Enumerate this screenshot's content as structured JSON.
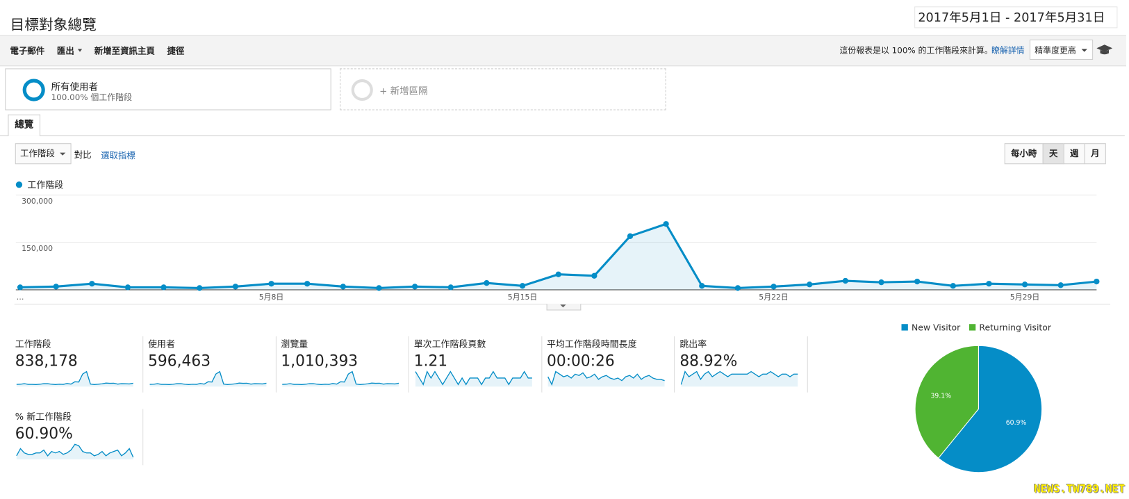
{
  "header": {
    "title": "目標對象總覽",
    "date_range": "2017年5月1日 - 2017年5月31日"
  },
  "toolbar": {
    "actions": [
      "電子郵件",
      "匯出",
      "新增至資訊主頁",
      "捷徑"
    ],
    "note": "這份報表是以 100% 的工作階段來計算。",
    "learn_more": "瞭解詳情",
    "precision": "精準度更高"
  },
  "segments": [
    {
      "name": "所有使用者",
      "detail": "100.00% 個工作階段"
    },
    {
      "name": "+ 新增區隔"
    }
  ],
  "tabs": [
    "總覽"
  ],
  "chart_controls": {
    "metric": "工作階段",
    "compare": "對比",
    "select_metric": "選取指標",
    "granularity": [
      "每小時",
      "天",
      "週",
      "月"
    ]
  },
  "chart_data": [
    {
      "type": "line",
      "categories": [
        "…",
        null,
        null,
        null,
        null,
        null,
        null,
        "5月8日",
        null,
        null,
        null,
        null,
        null,
        null,
        "5月15日",
        null,
        null,
        null,
        null,
        null,
        null,
        "5月22日",
        null,
        null,
        null,
        null,
        null,
        null,
        "5月29日",
        null,
        null
      ],
      "series": [
        {
          "name": "工作階段",
          "color": "#058dc7",
          "values": [
            6900,
            9200,
            18300,
            6900,
            6900,
            4600,
            9200,
            18300,
            18300,
            9200,
            4600,
            9200,
            6900,
            20600,
            11500,
            48100,
            43500,
            169500,
            208400,
            11500,
            4600,
            9200,
            16000,
            27500,
            22900,
            25200,
            11500,
            18300,
            16000,
            13700,
            25200
          ]
        }
      ],
      "ylim": [
        0,
        300000
      ],
      "yticks": [
        {
          "value": 150000,
          "label": "150,000"
        },
        {
          "value": 300000,
          "label": "300,000"
        }
      ],
      "grid": true
    },
    {
      "type": "pie",
      "categories": [
        "New Visitor",
        "Returning Visitor"
      ],
      "values": [
        60.9,
        39.1
      ],
      "value_labels": [
        "60.9%",
        "39.1%"
      ],
      "colors": [
        "#058dc7",
        "#50b432"
      ],
      "legend": "top"
    }
  ],
  "metrics": [
    {
      "label": "工作階段",
      "value": "838,178"
    },
    {
      "label": "使用者",
      "value": "596,463",
      "trend": [
        4900,
        6500,
        13000,
        4900,
        4900,
        3300,
        6500,
        13000,
        13000,
        6500,
        3300,
        6500,
        4900,
        14600,
        8200,
        34200,
        30900,
        120300,
        148000,
        8200,
        3300,
        6500,
        11400,
        19500,
        16300,
        17900,
        8200,
        13000,
        11400,
        9700,
        17900
      ]
    },
    {
      "label": "瀏覽量",
      "value": "1,010,393",
      "trend": [
        8300,
        11000,
        22000,
        8300,
        8300,
        5500,
        11000,
        22000,
        22000,
        11000,
        5500,
        11000,
        8300,
        24700,
        13800,
        57700,
        52200,
        203400,
        250100,
        13800,
        5500,
        11000,
        19200,
        33000,
        27500,
        30200,
        13800,
        22000,
        19200,
        16400,
        30200
      ]
    },
    {
      "label": "單次工作階段頁數",
      "value": "1.21",
      "trend": [
        1.22,
        1.21,
        1.2,
        1.22,
        1.21,
        1.22,
        1.21,
        1.2,
        1.21,
        1.22,
        1.21,
        1.2,
        1.21,
        1.2,
        1.21,
        1.21,
        1.21,
        1.2,
        1.21,
        1.21,
        1.22,
        1.21,
        1.21,
        1.21,
        1.2,
        1.21,
        1.21,
        1.21,
        1.22,
        1.21,
        1.21
      ]
    },
    {
      "label": "平均工作階段時間長度",
      "value": "00:00:26",
      "trend": [
        28,
        22,
        32,
        30,
        28,
        29,
        27,
        30,
        29,
        31,
        27,
        28,
        30,
        26,
        28,
        29,
        27,
        26,
        27,
        25,
        28,
        29,
        27,
        30,
        26,
        28,
        29,
        27,
        26,
        26,
        25
      ]
    },
    {
      "label": "跳出率",
      "value": "88.92%",
      "trend": [
        88.5,
        89,
        88.8,
        88.9,
        89,
        88.7,
        88.9,
        89,
        88.8,
        88.9,
        89,
        88.9,
        88.8,
        88.9,
        88.9,
        88.9,
        88.9,
        88.9,
        89,
        88.9,
        88.8,
        88.9,
        88.9,
        89,
        88.9,
        88.8,
        88.9,
        88.9,
        88.8,
        88.9,
        88.9
      ]
    },
    {
      "label": "% 新工作階段",
      "value": "60.90%",
      "trend": [
        58,
        63,
        60,
        59,
        59,
        60,
        60,
        62,
        58,
        61,
        60,
        61,
        59,
        60,
        62,
        66,
        65,
        61,
        60,
        60,
        58,
        59,
        61,
        58,
        60,
        61,
        62,
        58,
        60,
        63,
        57
      ]
    }
  ],
  "watermark": "NEWS.TW789.NET"
}
